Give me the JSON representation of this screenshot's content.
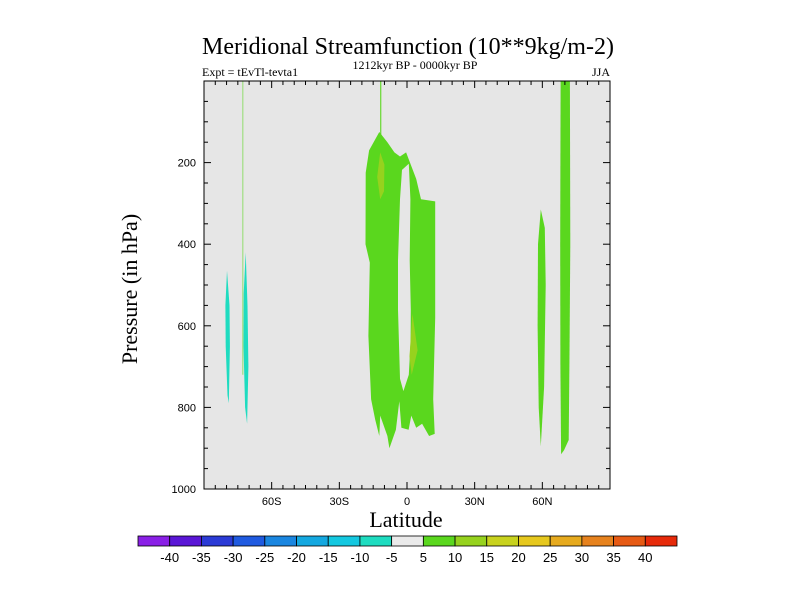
{
  "chart_data": {
    "type": "contour",
    "title": "Meridional Streamfunction (10**9kg/m-2)",
    "left_subtitle": "Expt = tEvTl-tevta1",
    "center_subtitle": "1212kyr BP - 0000kyr BP",
    "right_subtitle": "JJA",
    "xlabel": "Latitude",
    "ylabel": "Pressure (in hPa)",
    "xlim": [
      -90,
      90
    ],
    "ylim": [
      1000,
      0
    ],
    "x_ticks": [
      {
        "value": -60,
        "label": "60S"
      },
      {
        "value": -30,
        "label": "30S"
      },
      {
        "value": 0,
        "label": "0"
      },
      {
        "value": 30,
        "label": "30N"
      },
      {
        "value": 60,
        "label": "60N"
      }
    ],
    "y_ticks": [
      {
        "value": 200,
        "label": "200"
      },
      {
        "value": 400,
        "label": "400"
      },
      {
        "value": 600,
        "label": "600"
      },
      {
        "value": 800,
        "label": "800"
      },
      {
        "value": 1000,
        "label": "1000"
      }
    ],
    "background_color": "#e6e6e6",
    "contour_levels": [
      -40,
      -35,
      -30,
      -25,
      -20,
      -15,
      -10,
      -5,
      5,
      10,
      15,
      20,
      25,
      30,
      35,
      40
    ],
    "colorbar_colors": [
      "#8a20e6",
      "#5a16d6",
      "#2b3bd6",
      "#1f5ae0",
      "#1a86e0",
      "#14a8e0",
      "#14c8e0",
      "#1edcc0",
      "#eaeaea",
      "#5ad71e",
      "#96d21e",
      "#c8d21e",
      "#e6c81e",
      "#e6aa1e",
      "#e6821e",
      "#e65a14",
      "#e62a0a"
    ],
    "regions": [
      {
        "name": "neg-5-band-a",
        "level": -5,
        "color": "#1edcc0",
        "points": [
          [
            -79.8,
            465
          ],
          [
            -78.7,
            550
          ],
          [
            -78.5,
            650
          ],
          [
            -79,
            790
          ],
          [
            -79.6,
            770
          ],
          [
            -80.4,
            650
          ],
          [
            -80.5,
            550
          ]
        ]
      },
      {
        "name": "neg-5-band-b",
        "level": -5,
        "color": "#1edcc0",
        "points": [
          [
            -71.5,
            420
          ],
          [
            -70.7,
            550
          ],
          [
            -70.3,
            700
          ],
          [
            -70.9,
            840
          ],
          [
            -71.8,
            800
          ],
          [
            -72.5,
            650
          ],
          [
            -72.4,
            520
          ]
        ]
      },
      {
        "name": "pos-5-thin-a",
        "level": 5,
        "color": "#5ad71e",
        "points": [
          [
            -72.9,
            0
          ],
          [
            -72.6,
            0
          ],
          [
            -72.6,
            720
          ],
          [
            -72.9,
            720
          ]
        ]
      },
      {
        "name": "pos-5-thin-b",
        "level": 5,
        "color": "#5ad71e",
        "points": [
          [
            -11.9,
            0
          ],
          [
            -11.4,
            0
          ],
          [
            -11.4,
            140
          ],
          [
            -11.9,
            140
          ]
        ]
      },
      {
        "name": "pos-5-tropical-cell",
        "level": 5,
        "color": "#5ad71e",
        "points": [
          [
            -18.3,
            225
          ],
          [
            -16.8,
            170
          ],
          [
            -12.3,
            125
          ],
          [
            -8.7,
            150
          ],
          [
            -5.6,
            175
          ],
          [
            -3.1,
            185
          ],
          [
            -0.4,
            175
          ],
          [
            4.1,
            240
          ],
          [
            6.2,
            290
          ],
          [
            12.5,
            295
          ],
          [
            12.5,
            580
          ],
          [
            11.6,
            780
          ],
          [
            12.3,
            865
          ],
          [
            9.8,
            870
          ],
          [
            6.7,
            840
          ],
          [
            4.1,
            850
          ],
          [
            1.9,
            820
          ],
          [
            0.7,
            855
          ],
          [
            -2.5,
            850
          ],
          [
            -3.4,
            785
          ],
          [
            -4.9,
            855
          ],
          [
            -7.8,
            900
          ],
          [
            -8.7,
            870
          ],
          [
            -11.9,
            820
          ],
          [
            -12.3,
            870
          ],
          [
            -14.1,
            830
          ],
          [
            -15.9,
            780
          ],
          [
            -17.1,
            625
          ],
          [
            -16.5,
            445
          ],
          [
            -18.4,
            400
          ]
        ],
        "holes": [
          [
            [
              -2.2,
              218
            ],
            [
              0.8,
              203
            ],
            [
              1.5,
              290
            ],
            [
              1.2,
              440
            ],
            [
              1.7,
              560
            ],
            [
              1.6,
              640
            ],
            [
              0.8,
              720
            ],
            [
              -1.6,
              760
            ],
            [
              -3.1,
              730
            ],
            [
              -4.0,
              560
            ],
            [
              -4.0,
              440
            ],
            [
              -3.1,
              290
            ]
          ]
        ]
      },
      {
        "name": "pos-10-inner-top",
        "level": 10,
        "color": "#96d21e",
        "points": [
          [
            -13.2,
            235
          ],
          [
            -11.9,
            175
          ],
          [
            -10.0,
            205
          ],
          [
            -10.2,
            270
          ],
          [
            -11.9,
            290
          ]
        ]
      },
      {
        "name": "pos-10-inner-mid",
        "level": 10,
        "color": "#96d21e",
        "points": [
          [
            4.7,
            660
          ],
          [
            2.4,
            570
          ],
          [
            1.1,
            675
          ],
          [
            2.1,
            720
          ]
        ]
      },
      {
        "name": "pos-5-band-60N",
        "level": 5,
        "color": "#5ad71e",
        "points": [
          [
            59.3,
            315
          ],
          [
            61.1,
            360
          ],
          [
            61.5,
            500
          ],
          [
            60.8,
            750
          ],
          [
            59.3,
            895
          ],
          [
            58.4,
            800
          ],
          [
            57.9,
            600
          ],
          [
            58.1,
            400
          ]
        ]
      },
      {
        "name": "pos-5-band-70N",
        "level": 5,
        "color": "#5ad71e",
        "points": [
          [
            68.1,
            0
          ],
          [
            72.2,
            0
          ],
          [
            72.4,
            400
          ],
          [
            72.0,
            700
          ],
          [
            71.7,
            880
          ],
          [
            69.6,
            905
          ],
          [
            68.3,
            915
          ],
          [
            68.0,
            700
          ],
          [
            67.9,
            400
          ]
        ]
      }
    ]
  }
}
